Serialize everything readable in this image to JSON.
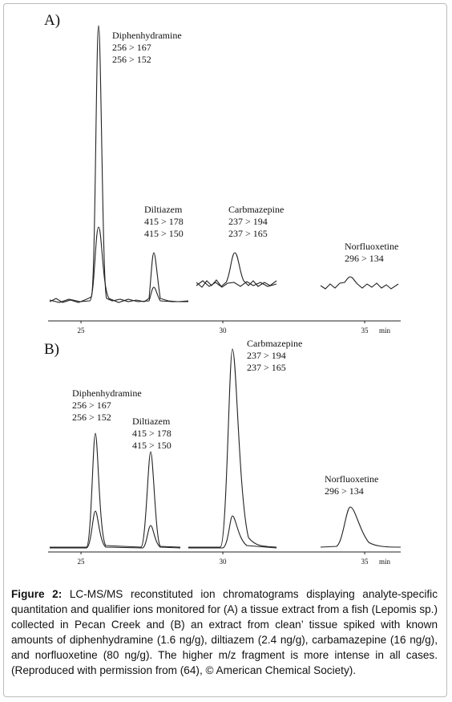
{
  "panels": [
    {
      "label": "A)",
      "xticks": [
        25,
        30,
        35
      ],
      "xlim": [
        23.84,
        36.27
      ],
      "x_unit": "min",
      "annotations": [
        {
          "name": "Diphenhydramine",
          "transitions": [
            "256 > 167",
            "256 > 152"
          ]
        },
        {
          "name": "Diltiazem",
          "transitions": [
            "415 > 178",
            "415 > 150"
          ]
        },
        {
          "name": "Carbmazepine",
          "transitions": [
            "237 > 194",
            "237 > 165"
          ]
        },
        {
          "name": "Norfluoxetine",
          "transitions": [
            "296 > 134"
          ]
        }
      ]
    },
    {
      "label": "B)",
      "xticks": [
        25,
        30,
        35
      ],
      "xlim": [
        23.84,
        36.27
      ],
      "x_unit": "min",
      "annotations": [
        {
          "name": "Diphenhydramine",
          "transitions": [
            "256 > 167",
            "256 > 152"
          ]
        },
        {
          "name": "Diltiazem",
          "transitions": [
            "415 > 178",
            "415 > 150"
          ]
        },
        {
          "name": "Carbmazepine",
          "transitions": [
            "237 > 194",
            "237 > 165"
          ]
        },
        {
          "name": "Norfluoxetine",
          "transitions": [
            "296 > 134"
          ]
        }
      ]
    }
  ],
  "caption": {
    "label": "Figure 2:",
    "text": "LC-MS/MS reconstituted ion chromatograms displaying analyte-specific quantitation and qualifier ions monitored for (A) a tissue extract from a fish (Lepomis sp.) collected in Pecan Creek and (B) an extract from clean’ tissue spiked with known amounts of diphenhydramine (1.6 ng/g), diltiazem (2.4 ng/g), carbamazepine (16 ng/g), and norfluoxetine (80 ng/g). The higher m/z fragment is more intense in all cases. (Reproduced with permission from (64), © American Chemical Society)."
  }
}
